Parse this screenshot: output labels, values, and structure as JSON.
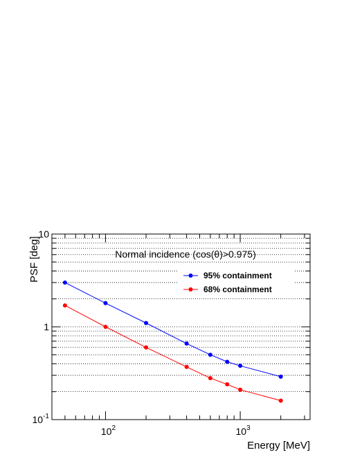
{
  "chart_data": {
    "type": "line",
    "xlabel": "Energy [MeV]",
    "ylabel": "PSF [deg]",
    "x_scale": "log",
    "y_scale": "log",
    "xlim": [
      40,
      3300
    ],
    "ylim": [
      0.1,
      10
    ],
    "x_ticks": [
      {
        "value": 100,
        "base": "10",
        "exp": "2"
      },
      {
        "value": 1000,
        "base": "10",
        "exp": "3"
      }
    ],
    "y_ticks": [
      {
        "value": 0.1,
        "base": "10",
        "exp": "-1"
      },
      {
        "value": 1,
        "base": "1",
        "exp": ""
      },
      {
        "value": 10,
        "base": "10",
        "exp": ""
      }
    ],
    "grid": {
      "x": false,
      "y": true,
      "style": "dotted"
    },
    "annotation": "Normal incidence (cos(θ)>0.975)",
    "legend_position": "top-right",
    "series": [
      {
        "name": "95% containment",
        "color": "#0000ff",
        "x": [
          50,
          100,
          200,
          400,
          600,
          800,
          1000,
          2000
        ],
        "y": [
          3.0,
          1.8,
          1.1,
          0.66,
          0.5,
          0.42,
          0.38,
          0.29
        ]
      },
      {
        "name": "68% containment",
        "color": "#ff0000",
        "x": [
          50,
          100,
          200,
          400,
          600,
          800,
          1000,
          2000
        ],
        "y": [
          1.7,
          1.0,
          0.6,
          0.37,
          0.28,
          0.24,
          0.21,
          0.16
        ]
      }
    ]
  }
}
